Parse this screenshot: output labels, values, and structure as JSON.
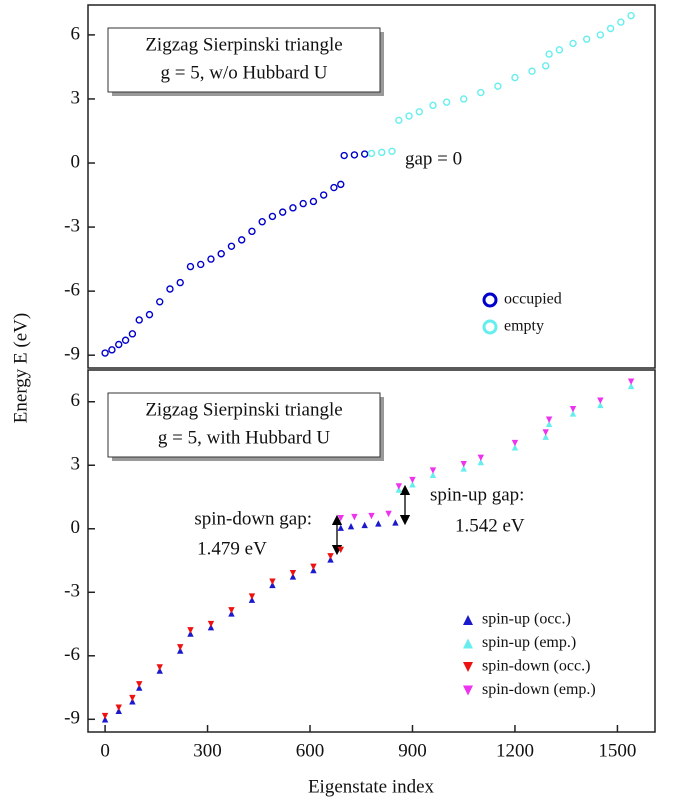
{
  "chart_data": [
    {
      "type": "scatter",
      "box_lines": [
        "Zigzag Sierpinski triangle",
        "g = 5, w/o Hubbard U"
      ],
      "ylabel": "Energy E (eV)",
      "annotations": [
        "gap = 0"
      ],
      "xlim": [
        -50,
        1610
      ],
      "ylim": [
        -9.6,
        7.4
      ],
      "yticks": [
        -9,
        -6,
        -3,
        0,
        3,
        6
      ],
      "series": [
        {
          "name": "occupied",
          "marker": "circle",
          "color": "#0000cc",
          "x": [
            0,
            20,
            40,
            60,
            80,
            100,
            130,
            160,
            190,
            220,
            250,
            280,
            310,
            340,
            370,
            400,
            430,
            460,
            490,
            520,
            550,
            580,
            610,
            640,
            670,
            690,
            700,
            730,
            760
          ],
          "values": [
            -8.9,
            -8.75,
            -8.5,
            -8.3,
            -8.0,
            -7.35,
            -7.1,
            -6.5,
            -5.9,
            -5.6,
            -4.85,
            -4.75,
            -4.5,
            -4.25,
            -3.9,
            -3.6,
            -3.2,
            -2.75,
            -2.5,
            -2.3,
            -2.1,
            -1.9,
            -1.8,
            -1.5,
            -1.15,
            -1.0,
            0.35,
            0.38,
            0.42
          ]
        },
        {
          "name": "empty",
          "marker": "circle",
          "color": "#66eeee",
          "x": [
            780,
            810,
            840,
            860,
            890,
            920,
            960,
            1000,
            1050,
            1100,
            1150,
            1200,
            1250,
            1290,
            1300,
            1330,
            1370,
            1410,
            1450,
            1480,
            1510,
            1540
          ],
          "values": [
            0.45,
            0.5,
            0.55,
            2.0,
            2.2,
            2.4,
            2.7,
            2.85,
            3.0,
            3.3,
            3.6,
            4.0,
            4.3,
            4.55,
            5.1,
            5.3,
            5.6,
            5.8,
            6.0,
            6.3,
            6.6,
            6.9
          ]
        }
      ]
    },
    {
      "type": "scatter",
      "box_lines": [
        "Zigzag Sierpinski triangle",
        "g = 5, with Hubbard U"
      ],
      "xlabel": "Eigenstate index",
      "annotations": [
        "spin-down gap:",
        "1.479 eV",
        "spin-up gap:",
        "1.542 eV"
      ],
      "xlim": [
        -50,
        1610
      ],
      "ylim": [
        -9.6,
        7.5
      ],
      "xticks": [
        0,
        300,
        600,
        900,
        1200,
        1500
      ],
      "yticks": [
        -9,
        -6,
        -3,
        0,
        3,
        6
      ],
      "series": [
        {
          "name": "spin-up (occ.)",
          "marker": "up",
          "color": "#1a1acc",
          "x": [
            0,
            40,
            80,
            100,
            160,
            220,
            250,
            310,
            370,
            430,
            490,
            550,
            610,
            660,
            690,
            720,
            760,
            800,
            850
          ],
          "values": [
            -9.0,
            -8.6,
            -8.15,
            -7.5,
            -6.7,
            -5.75,
            -4.95,
            -4.65,
            -4.0,
            -3.35,
            -2.65,
            -2.25,
            -1.95,
            -1.45,
            0.05,
            0.12,
            0.18,
            0.25,
            0.3
          ]
        },
        {
          "name": "spin-up (emp.)",
          "marker": "up",
          "color": "#66eeee",
          "x": [
            860,
            900,
            960,
            1050,
            1100,
            1200,
            1290,
            1300,
            1370,
            1450,
            1540
          ],
          "values": [
            1.85,
            2.1,
            2.55,
            2.85,
            3.15,
            3.85,
            4.35,
            4.95,
            5.45,
            5.85,
            6.75
          ]
        },
        {
          "name": "spin-down (occ.)",
          "marker": "down",
          "color": "#ee1111",
          "x": [
            0,
            40,
            80,
            100,
            160,
            220,
            250,
            310,
            370,
            430,
            490,
            550,
            610,
            660,
            690
          ],
          "values": [
            -8.85,
            -8.45,
            -8.0,
            -7.35,
            -6.55,
            -5.6,
            -4.8,
            -4.5,
            -3.85,
            -3.2,
            -2.5,
            -2.1,
            -1.8,
            -1.3,
            -1.0
          ]
        },
        {
          "name": "spin-down (emp.)",
          "marker": "down",
          "color": "#ee33ee",
          "x": [
            690,
            730,
            780,
            830,
            860,
            900,
            960,
            1050,
            1100,
            1200,
            1290,
            1300,
            1370,
            1450,
            1540
          ],
          "values": [
            0.5,
            0.55,
            0.6,
            0.7,
            2.0,
            2.3,
            2.75,
            3.05,
            3.35,
            4.05,
            4.55,
            5.15,
            5.65,
            6.05,
            6.95
          ]
        }
      ]
    }
  ]
}
